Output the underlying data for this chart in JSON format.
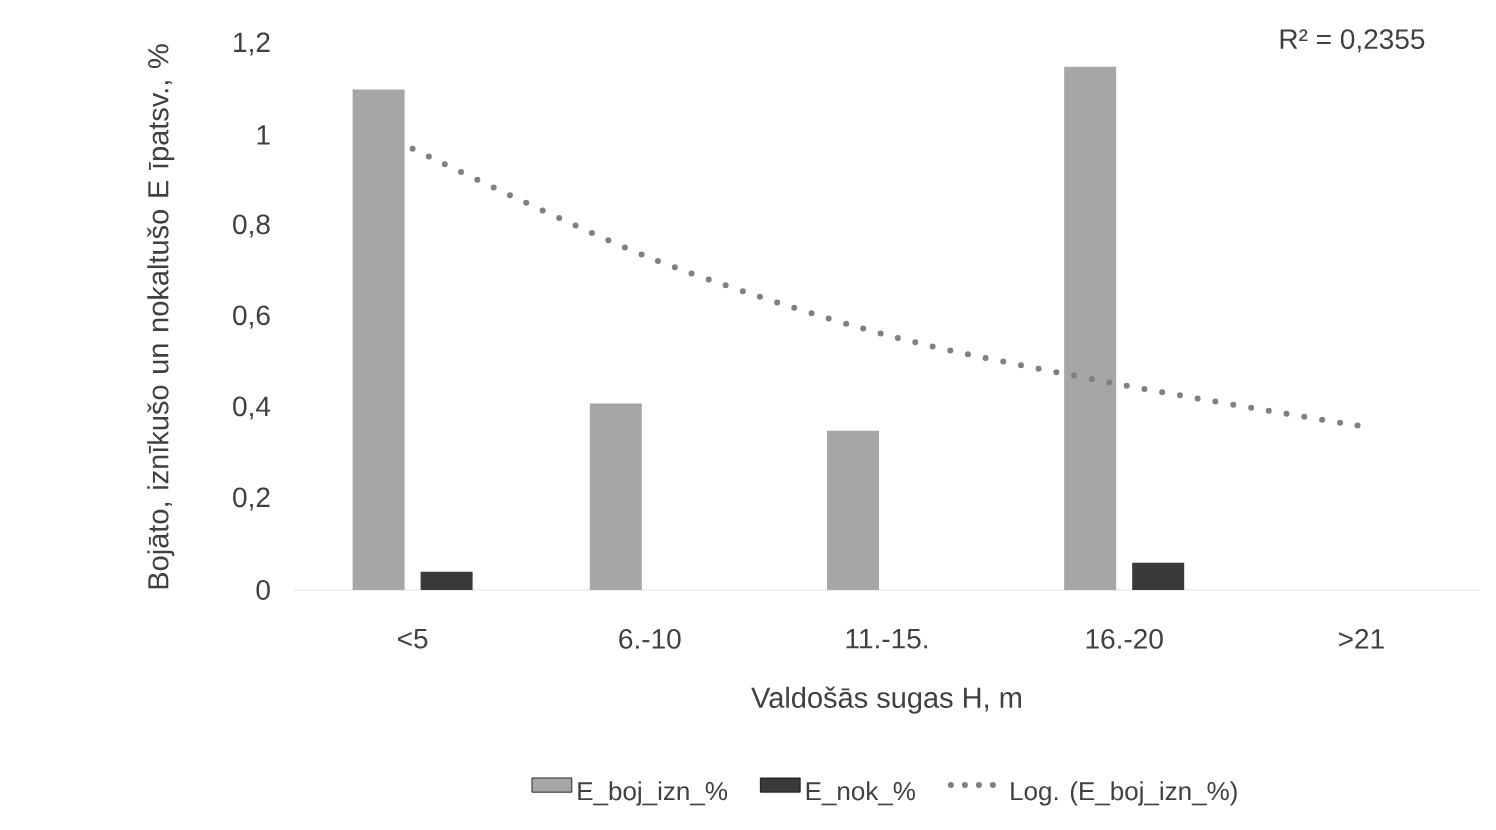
{
  "chart_data": {
    "type": "bar",
    "xlabel": "Valdošās sugas H, m",
    "ylabel": "Bojāto, iznīkušo un nokaltušo E īpatsv., %",
    "categories": [
      "<5",
      "6.-10",
      "11.-15.",
      "16.-20",
      ">21"
    ],
    "series": [
      {
        "name": "E_boj_izn_%",
        "color": "#a6a6a6",
        "values": [
          1.1,
          0.41,
          0.35,
          1.15,
          null
        ]
      },
      {
        "name": "E_nok_%",
        "color": "#3a3a3a",
        "values": [
          0.04,
          null,
          null,
          0.06,
          null
        ]
      },
      {
        "name": "Log. (E_boj_izn_%)",
        "type": "line",
        "line_style": "dotted",
        "color": "#808080",
        "values": [
          0.97,
          0.73,
          0.56,
          0.45,
          0.36
        ]
      }
    ],
    "ylim": [
      0,
      1.2
    ],
    "yticks": [
      0,
      {
        "value": 0.2,
        "label": "0,2"
      },
      {
        "value": 0.4,
        "label": "0,4"
      },
      {
        "value": 0.6,
        "label": "0,6"
      },
      {
        "value": 0.8,
        "label": "0,8"
      },
      1,
      {
        "value": 1.2,
        "label": "1,2"
      }
    ],
    "annotations": [
      "R² = 0,2355"
    ],
    "legend": "bottom"
  }
}
